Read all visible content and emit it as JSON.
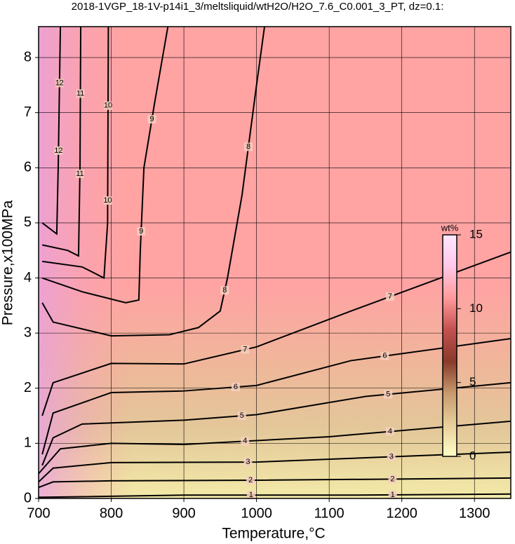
{
  "chart_data": {
    "type": "contour",
    "title": "2018-1VGP_18-1V-p14i1_3/meltsliquid/wtH2O/H2O_7.6_C0.001_3_PT, dz=0.1:",
    "x_label": "Temperature,°C",
    "y_label": "Pressure,x100MPa",
    "xlim": [
      700,
      1350
    ],
    "ylim": [
      0,
      8.56
    ],
    "xticks": [
      700,
      800,
      900,
      1000,
      1100,
      1200,
      1300
    ],
    "yticks": [
      0,
      1,
      2,
      3,
      4,
      5,
      6,
      7,
      8
    ],
    "grid": true,
    "line_color": "#000000",
    "colorbar": {
      "label": "wt%",
      "lim": [
        0,
        15
      ],
      "ticks": [
        0,
        5,
        10,
        15
      ],
      "colors": [
        "#ffffc8",
        "#e8cf9a",
        "#c79a6e",
        "#8a3a2a",
        "#c45050",
        "#ff9a9a",
        "#ffc8e8",
        "#ffe8ff"
      ]
    },
    "contours": [
      {
        "level": 1,
        "x": [
          700,
          900,
          1130,
          1350
        ],
        "y": [
          0.02,
          0.06,
          0.06,
          0.08
        ]
      },
      {
        "level": 2,
        "x": [
          700,
          720,
          800,
          1000,
          1350
        ],
        "y": [
          0.2,
          0.3,
          0.32,
          0.33,
          0.37
        ]
      },
      {
        "level": 3,
        "x": [
          700,
          720,
          800,
          1000,
          1350
        ],
        "y": [
          0.3,
          0.55,
          0.65,
          0.66,
          0.84
        ]
      },
      {
        "level": 4,
        "x": [
          700,
          730,
          800,
          900,
          1100,
          1350
        ],
        "y": [
          0.45,
          0.9,
          1.0,
          0.98,
          1.12,
          1.4
        ]
      },
      {
        "level": 5,
        "x": [
          705,
          720,
          760,
          900,
          1000,
          1150,
          1350
        ],
        "y": [
          0.6,
          1.1,
          1.35,
          1.42,
          1.52,
          1.85,
          2.1
        ]
      },
      {
        "level": 6,
        "x": [
          705,
          720,
          800,
          900,
          1000,
          1130,
          1350
        ],
        "y": [
          0.8,
          1.55,
          1.92,
          1.95,
          2.05,
          2.5,
          2.9
        ]
      },
      {
        "level": 7,
        "x": [
          705,
          720,
          800,
          900,
          1000,
          1130,
          1350
        ],
        "y": [
          1.5,
          2.1,
          2.45,
          2.44,
          2.75,
          3.4,
          4.47
        ]
      },
      {
        "level": 8,
        "x": [
          705,
          720,
          800,
          880,
          920,
          950,
          960,
          980,
          1000,
          1011
        ],
        "y": [
          3.55,
          3.2,
          2.95,
          2.97,
          3.1,
          3.4,
          4.0,
          5.5,
          7.5,
          8.56
        ]
      },
      {
        "level": 9,
        "x": [
          705,
          760,
          820,
          838,
          840,
          845,
          860,
          878
        ],
        "y": [
          4.0,
          3.75,
          3.55,
          3.6,
          4.5,
          6.0,
          7.2,
          8.56
        ]
      },
      {
        "level": 10,
        "x": [
          705,
          760,
          790,
          795,
          796
        ],
        "y": [
          4.3,
          4.2,
          4.0,
          5.0,
          8.56
        ]
      },
      {
        "level": 11,
        "x": [
          705,
          740,
          755,
          757,
          758
        ],
        "y": [
          4.6,
          4.5,
          4.4,
          6.0,
          8.56
        ]
      },
      {
        "level": 12,
        "x": [
          705,
          725,
          727,
          730
        ],
        "y": [
          5.0,
          4.8,
          6.0,
          8.56
        ]
      }
    ]
  }
}
